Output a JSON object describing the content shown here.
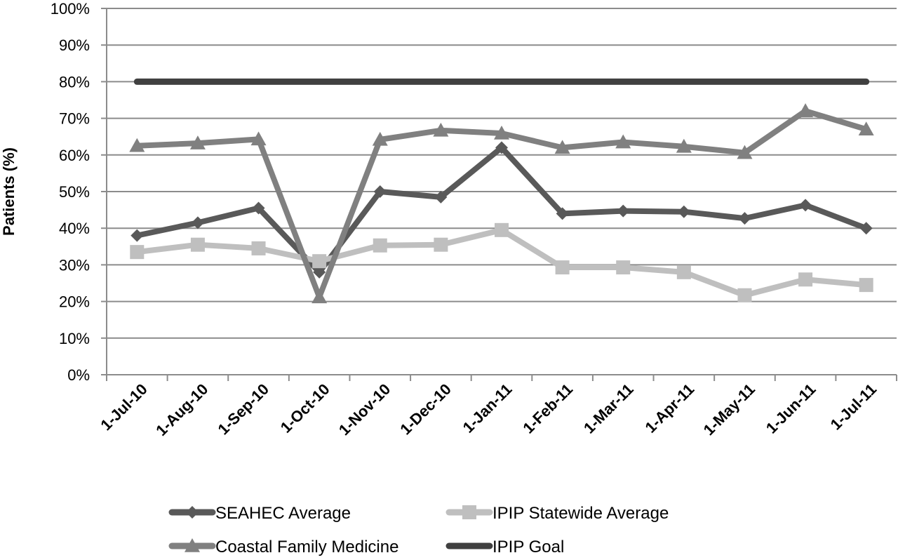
{
  "chart_data": {
    "type": "line",
    "title": "",
    "xlabel": "",
    "ylabel": "Patients (%)",
    "ylim": [
      0,
      100
    ],
    "ytick_step": 10,
    "ytick_suffix": "%",
    "grid": true,
    "legend_position": "bottom",
    "categories": [
      "1-Jul-10",
      "1-Aug-10",
      "1-Sep-10",
      "1-Oct-10",
      "1-Nov-10",
      "1-Dec-10",
      "1-Jan-11",
      "1-Feb-11",
      "1-Mar-11",
      "1-Apr-11",
      "1-May-11",
      "1-Jun-11",
      "1-Jul-11"
    ],
    "series": [
      {
        "name": "SEAHEC Average",
        "color": "#595959",
        "marker": "diamond",
        "values": [
          38,
          41.5,
          45.5,
          28,
          50,
          48.5,
          62,
          44,
          44.7,
          44.5,
          42.7,
          46.3,
          40
        ]
      },
      {
        "name": "IPIP Statewide Average",
        "color": "#bfbfbf",
        "marker": "square",
        "values": [
          33.5,
          35.5,
          34.5,
          31,
          35.3,
          35.5,
          39.5,
          29.3,
          29.3,
          28,
          21.7,
          26,
          24.5
        ]
      },
      {
        "name": "Coastal Family Medicine",
        "color": "#808080",
        "marker": "triangle",
        "values": [
          62.5,
          63.2,
          64.3,
          21.2,
          64.2,
          66.7,
          65.9,
          62,
          63.5,
          62.3,
          60.6,
          72,
          67
        ]
      },
      {
        "name": "IPIP Goal",
        "color": "#404040",
        "marker": "none",
        "values": [
          80,
          80,
          80,
          80,
          80,
          80,
          80,
          80,
          80,
          80,
          80,
          80,
          80
        ]
      }
    ]
  }
}
